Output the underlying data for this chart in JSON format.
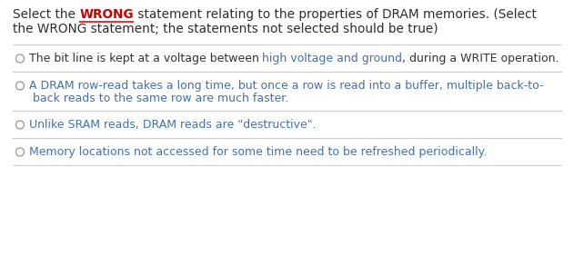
{
  "bg_color": "#ffffff",
  "title_color": "#2d2d2d",
  "wrong_color": "#cc0000",
  "option_text_color": "#4472a8",
  "plain_color": "#333333",
  "circle_color": "#999999",
  "line_color": "#cccccc",
  "font_size_title": 9.8,
  "font_size_option": 9.0,
  "options": [
    {
      "parts": [
        {
          "text": "The bit line is kept at a voltage between ",
          "color": "#333333"
        },
        {
          "text": "high voltage and ground",
          "color": "#4472a8"
        },
        {
          "text": ", during a WRITE operation.",
          "color": "#333333"
        }
      ],
      "lines": 1
    },
    {
      "parts": [
        {
          "text": "A DRAM row-read takes a long time, but once a row is read into a buffer, multiple back-to-\nback reads to the same row are much faster.",
          "color": "#4472a8"
        }
      ],
      "lines": 2
    },
    {
      "parts": [
        {
          "text": "Unlike SRAM reads, DRAM reads are \"destructive\".",
          "color": "#4472a8"
        }
      ],
      "lines": 1
    },
    {
      "parts": [
        {
          "text": "Memory locations not accessed for some time need to be refreshed periodically.",
          "color": "#4472a8"
        }
      ],
      "lines": 1
    }
  ]
}
